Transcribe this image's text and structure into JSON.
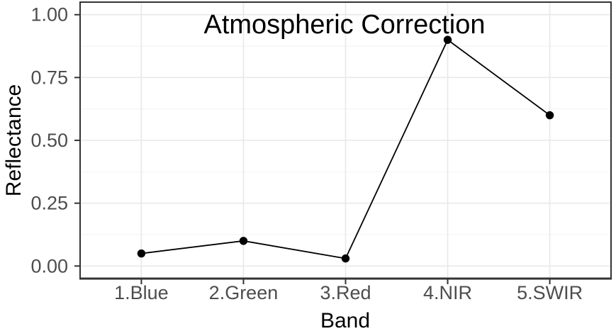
{
  "chart_data": {
    "type": "line",
    "title": "Atmospheric Correction",
    "xlabel": "Band",
    "ylabel": "Reflectance",
    "categories": [
      "1.Blue",
      "2.Green",
      "3.Red",
      "4.NIR",
      "5.SWIR"
    ],
    "values": [
      0.05,
      0.1,
      0.03,
      0.9,
      0.6
    ],
    "ylim": [
      0,
      1
    ],
    "yticks": [
      0,
      0.25,
      0.5,
      0.75,
      1
    ],
    "ytick_labels": [
      "0.00",
      "0.25",
      "0.50",
      "0.75",
      "1.00"
    ],
    "yticks_minor": [
      0.125,
      0.375,
      0.625,
      0.875
    ],
    "grid": "horizontal major+minor, vertical major at categories",
    "legend_position": "none",
    "marker": "filled-circle"
  },
  "style": {
    "background": "#FFFFFF",
    "panel_background": "#FFFFFF",
    "panel_border": "#333333",
    "axis_line": "#333333",
    "tick_color": "#333333",
    "grid_major": "#E8E8E8",
    "grid_minor": "#F2F2F2",
    "tick_label_color": "#4D4D4D",
    "title_color": "#000000",
    "axis_title_color": "#000000",
    "line_color": "#000000",
    "point_color": "#000000"
  }
}
